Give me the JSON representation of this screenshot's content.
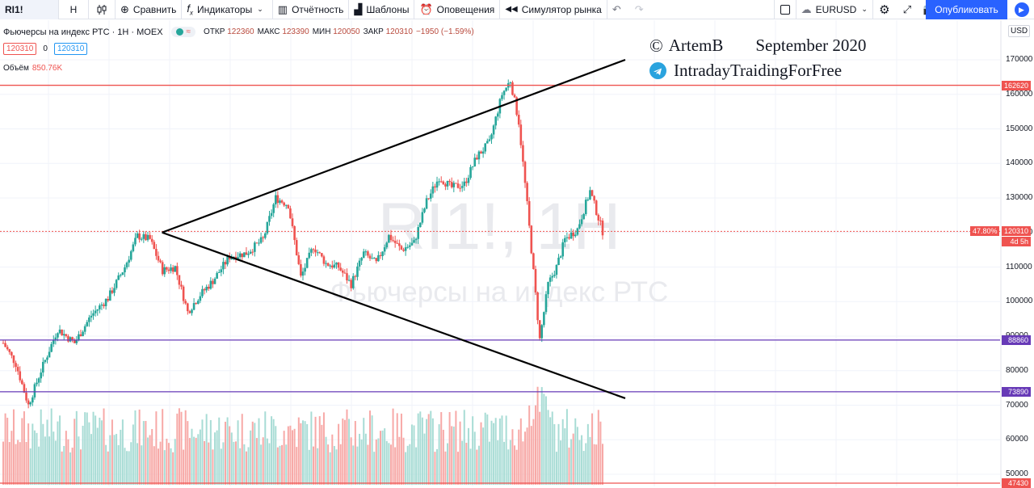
{
  "toolbar": {
    "symbol": "RI1!",
    "interval": "H",
    "compare": "Сравнить",
    "indicators": "Индикаторы",
    "financials": "Отчётность",
    "templates": "Шаблоны",
    "alerts": "Оповещения",
    "replay": "Симулятор рынка",
    "pair": "EURUSD",
    "publish": "Опубликовать"
  },
  "legend": {
    "title": "Фьючерсы на индекс РТС · 1H · MOEX",
    "open_label": "ОТКР",
    "open": "122360",
    "high_label": "МАКС",
    "high": "123390",
    "low_label": "МИН",
    "low": "120050",
    "close_label": "ЗАКР",
    "close": "120310",
    "change": "−1950 (−1.59%)",
    "sell_price": "120310",
    "spread": "0",
    "buy_price": "120310",
    "volume_label": "Объём",
    "volume_value": "850.76K"
  },
  "annotation": {
    "author": "ArtemB",
    "date": "September 2020",
    "channel": "IntradayTraidingForFree"
  },
  "watermark": {
    "symbol": "RI1!, 1H",
    "name": "Фьючерсы на индекс РТС"
  },
  "axis": {
    "currency": "USD",
    "ticks": [
      "170000",
      "160000",
      "150000",
      "140000",
      "130000",
      "120000",
      "110000",
      "100000",
      "90000",
      "80000",
      "70000",
      "60000",
      "50000"
    ]
  },
  "price_tags": [
    {
      "label": "162620",
      "value": 162620,
      "color": "#ef5350"
    },
    {
      "label": "120310",
      "value": 120310,
      "color": "#ef5350"
    },
    {
      "label": "88860",
      "value": 88860,
      "color": "#673ab7"
    },
    {
      "label": "73890",
      "value": 73890,
      "color": "#673ab7"
    },
    {
      "label": "47430",
      "value": 47430,
      "color": "#ef5350"
    }
  ],
  "current_price_extra": {
    "pct": "47.80%",
    "countdown": "4d 5h"
  },
  "colors": {
    "up": "#26a69a",
    "down": "#ef5350",
    "red_line": "#ef5350",
    "purple_line": "#673ab7",
    "trend": "#000000"
  },
  "chart_data": {
    "type": "candlestick",
    "title": "Фьючерсы на индекс РТС · 1H · MOEX",
    "ylim": [
      46000,
      174000
    ],
    "horizontal_levels": [
      162620,
      120310,
      88860,
      73890,
      47430
    ],
    "trendlines": [
      {
        "from": {
          "bar": 0.265,
          "price": 120000
        },
        "to": {
          "bar": 1.0,
          "price": 170000
        }
      },
      {
        "from": {
          "bar": 0.265,
          "price": 120000
        },
        "to": {
          "bar": 1.0,
          "price": 72000
        }
      }
    ],
    "close_path": [
      [
        0,
        88000
      ],
      [
        6,
        82000
      ],
      [
        12,
        70000
      ],
      [
        18,
        80000
      ],
      [
        26,
        92000
      ],
      [
        34,
        88000
      ],
      [
        42,
        96000
      ],
      [
        50,
        101000
      ],
      [
        58,
        110000
      ],
      [
        64,
        119000
      ],
      [
        70,
        118000
      ],
      [
        76,
        109000
      ],
      [
        82,
        110000
      ],
      [
        88,
        97000
      ],
      [
        94,
        102000
      ],
      [
        100,
        106000
      ],
      [
        108,
        113000
      ],
      [
        116,
        114000
      ],
      [
        124,
        118000
      ],
      [
        130,
        130000
      ],
      [
        136,
        128000
      ],
      [
        142,
        107000
      ],
      [
        148,
        116000
      ],
      [
        154,
        111000
      ],
      [
        160,
        110000
      ],
      [
        166,
        105000
      ],
      [
        172,
        114000
      ],
      [
        178,
        111000
      ],
      [
        184,
        119000
      ],
      [
        190,
        115000
      ],
      [
        196,
        117000
      ],
      [
        202,
        129000
      ],
      [
        208,
        136000
      ],
      [
        214,
        133000
      ],
      [
        220,
        134000
      ],
      [
        226,
        142000
      ],
      [
        232,
        146000
      ],
      [
        238,
        160000
      ],
      [
        242,
        164000
      ],
      [
        246,
        152000
      ],
      [
        250,
        128000
      ],
      [
        256,
        89000
      ],
      [
        260,
        105000
      ],
      [
        264,
        110000
      ],
      [
        268,
        118000
      ],
      [
        274,
        121000
      ],
      [
        280,
        132000
      ],
      [
        286,
        120310
      ]
    ]
  }
}
